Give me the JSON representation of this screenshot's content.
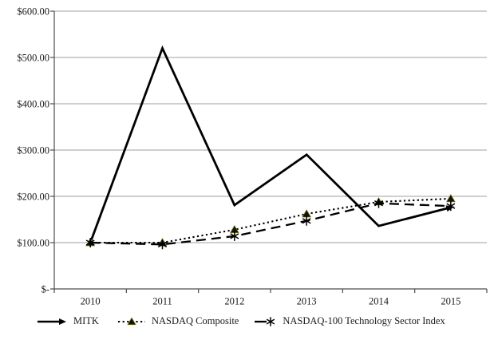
{
  "chart_data": {
    "type": "line",
    "x_categories": [
      "2010",
      "2011",
      "2012",
      "2013",
      "2014",
      "2015"
    ],
    "y_axis": {
      "min": 0,
      "max": 600,
      "step": 100,
      "tick_labels": [
        "$-",
        "$100.00",
        "$200.00",
        "$300.00",
        "$400.00",
        "$500.00",
        "$600.00"
      ]
    },
    "grid": true,
    "legend_position": "bottom",
    "series": [
      {
        "name": "MITK",
        "style": "solid",
        "marker": "arrow-end",
        "color": "#000000",
        "values": [
          100,
          520,
          181,
          290,
          136,
          176
        ]
      },
      {
        "name": "NASDAQ Composite",
        "style": "dotted",
        "marker": "triangle",
        "color": "#000000",
        "values": [
          100,
          100,
          128,
          162,
          188,
          195
        ]
      },
      {
        "name": "NASDAQ-100 Technology Sector Index",
        "style": "dashed",
        "marker": "asterisk",
        "color": "#000000",
        "values": [
          100,
          96,
          114,
          147,
          185,
          179
        ]
      }
    ]
  },
  "colors": {
    "background": "#ffffff",
    "gridline": "#9f9f9f",
    "axis": "#4d4d4d",
    "text": "#1a1a1a",
    "line": "#000000",
    "marker_fill": "#151503",
    "marker_accent": "#8c8c2e"
  }
}
